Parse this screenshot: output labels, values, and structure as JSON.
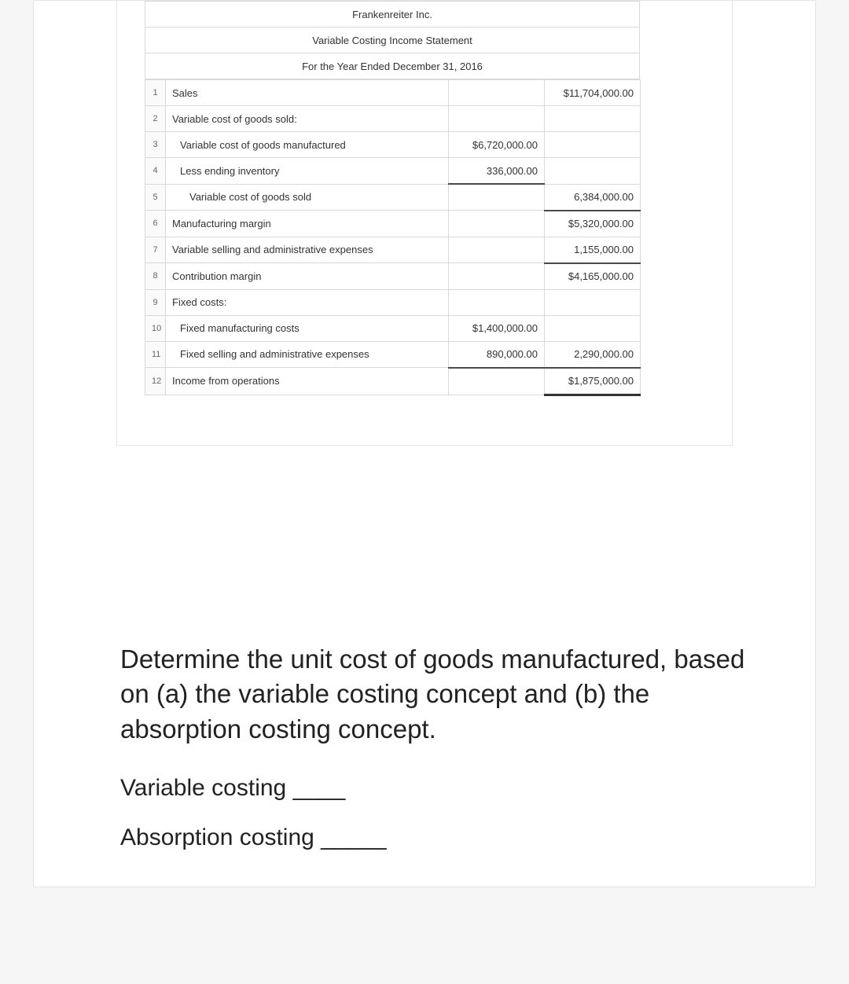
{
  "statement": {
    "company": "Frankenreiter Inc.",
    "title": "Variable Costing Income Statement",
    "period": "For the Year Ended December 31, 2016",
    "rows": [
      {
        "n": "1",
        "desc": "Sales",
        "indent": 0,
        "col1": "",
        "col2": "$11,704,000.00",
        "c1line": "",
        "c2line": ""
      },
      {
        "n": "2",
        "desc": "Variable cost of goods sold:",
        "indent": 0,
        "col1": "",
        "col2": "",
        "c1line": "",
        "c2line": ""
      },
      {
        "n": "3",
        "desc": "Variable cost of goods manufactured",
        "indent": 1,
        "col1": "$6,720,000.00",
        "col2": "",
        "c1line": "",
        "c2line": ""
      },
      {
        "n": "4",
        "desc": "Less ending inventory",
        "indent": 1,
        "col1": "336,000.00",
        "col2": "",
        "c1line": "bb",
        "c2line": ""
      },
      {
        "n": "5",
        "desc": "Variable cost of goods sold",
        "indent": 2,
        "col1": "",
        "col2": "6,384,000.00",
        "c1line": "",
        "c2line": "bb"
      },
      {
        "n": "6",
        "desc": "Manufacturing margin",
        "indent": 0,
        "col1": "",
        "col2": "$5,320,000.00",
        "c1line": "",
        "c2line": ""
      },
      {
        "n": "7",
        "desc": "Variable selling and administrative expenses",
        "indent": 0,
        "col1": "",
        "col2": "1,155,000.00",
        "c1line": "",
        "c2line": "bb"
      },
      {
        "n": "8",
        "desc": "Contribution margin",
        "indent": 0,
        "col1": "",
        "col2": "$4,165,000.00",
        "c1line": "",
        "c2line": ""
      },
      {
        "n": "9",
        "desc": "Fixed costs:",
        "indent": 0,
        "col1": "",
        "col2": "",
        "c1line": "",
        "c2line": ""
      },
      {
        "n": "10",
        "desc": "Fixed manufacturing costs",
        "indent": 1,
        "col1": "$1,400,000.00",
        "col2": "",
        "c1line": "",
        "c2line": ""
      },
      {
        "n": "11",
        "desc": "Fixed selling and administrative expenses",
        "indent": 1,
        "col1": "890,000.00",
        "col2": "2,290,000.00",
        "c1line": "bb",
        "c2line": "bb"
      },
      {
        "n": "12",
        "desc": "Income from operations",
        "indent": 0,
        "col1": "",
        "col2": "$1,875,000.00",
        "c1line": "",
        "c2line": "bbT"
      }
    ]
  },
  "question": {
    "main": "Determine the unit cost of goods manufactured, based on (a) the variable costing concept and (b) the absorption costing concept.",
    "line1": "Variable costing ____",
    "line2": "Absorption costing _____"
  },
  "colors": {
    "page_bg": "#f6f6f6",
    "card_bg": "#ffffff",
    "border": "#d9d9d9",
    "header_bg": "#f1f1f1",
    "text": "#333333"
  }
}
